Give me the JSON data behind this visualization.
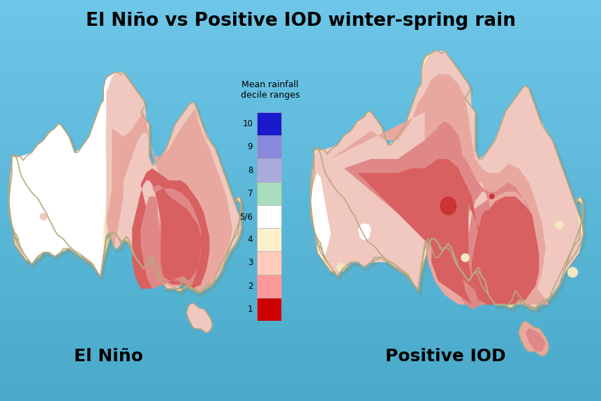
{
  "title": "El Niño vs Positive IOD winter-spring rain",
  "label_left": "El Niño",
  "label_right": "Positive IOD",
  "legend_title": "Mean rainfall\ndecile ranges",
  "legend_labels": [
    "10",
    "9",
    "8",
    "7",
    "5/6",
    "4",
    "3",
    "2",
    "1"
  ],
  "legend_colors": [
    "#1a1acc",
    "#8888dd",
    "#aaaadd",
    "#aaddbb",
    "#ffffff",
    "#fff0cc",
    "#ffccbb",
    "#ff9999",
    "#cc0000"
  ],
  "background_color_top": "#6ec6e8",
  "background_color_bot": "#4aaaca",
  "title_fontsize": 19,
  "label_fontsize": 18,
  "aus_outline_color": "#b8a880",
  "aus_shadow_color": "#888866"
}
